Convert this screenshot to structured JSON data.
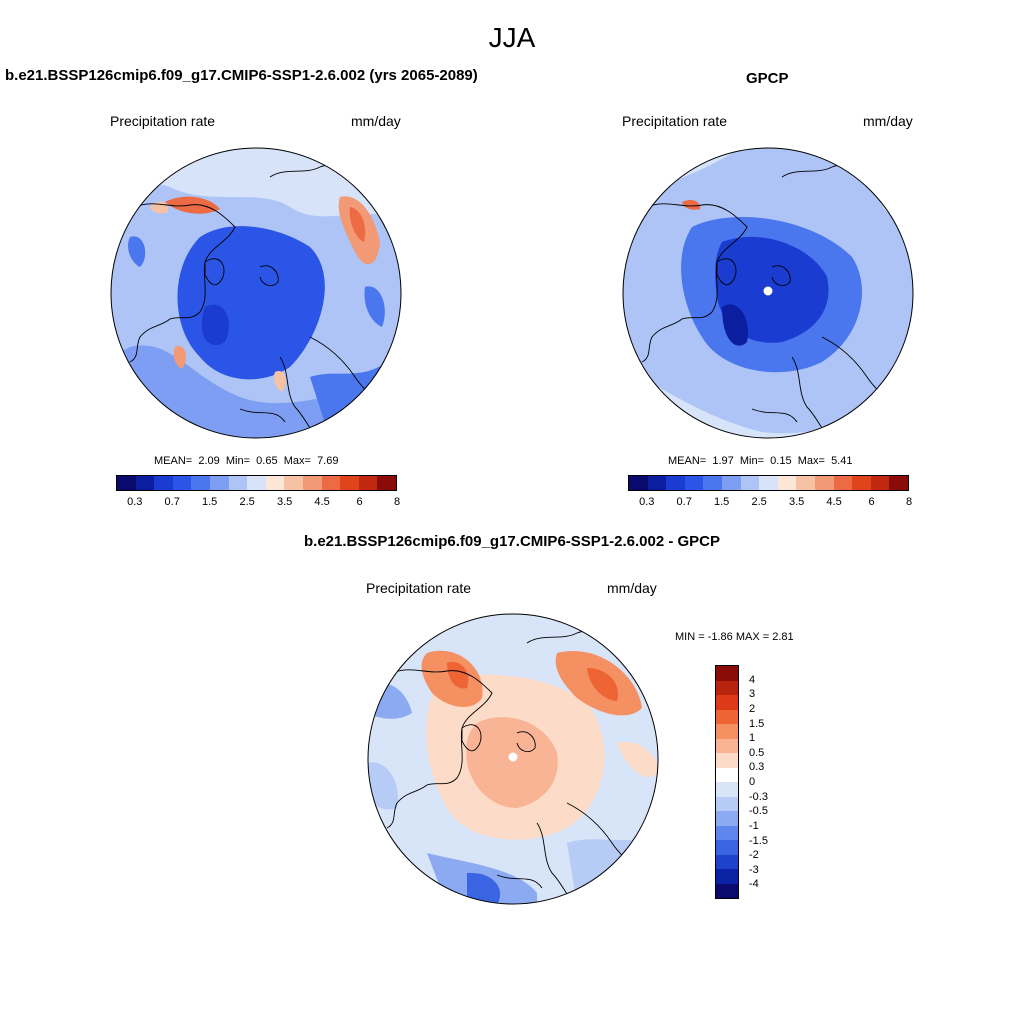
{
  "season": "JJA",
  "panels": [
    {
      "id": "model",
      "title": "b.e21.BSSP126cmip6.f09_g17.CMIP6-SSP1-2.6.002 (yrs 2065-2089)",
      "var_label": "Precipitation rate",
      "units": "mm/day",
      "stats": {
        "mean_label": "MEAN=",
        "mean": "2.09",
        "min_label": "Min=",
        "min": "0.65",
        "max_label": "Max=",
        "max": "7.69"
      }
    },
    {
      "id": "obs",
      "title": "GPCP",
      "var_label": "Precipitation rate",
      "units": "mm/day",
      "stats": {
        "mean_label": "MEAN=",
        "mean": "1.97",
        "min_label": "Min=",
        "min": "0.15",
        "max_label": "Max=",
        "max": "5.41"
      }
    },
    {
      "id": "diff",
      "title": "b.e21.BSSP126cmip6.f09_g17.CMIP6-SSP1-2.6.002 - GPCP",
      "var_label": "Precipitation rate",
      "units": "mm/day",
      "stats_text": "MIN =  -1.86 MAX =   2.81"
    }
  ],
  "colorbar_abs": {
    "colors": [
      "#0a0a6e",
      "#0c1ea0",
      "#1a3cd0",
      "#2a55e6",
      "#4a76ee",
      "#7d9ef2",
      "#aec4f6",
      "#d6e3f8",
      "#fbe6d8",
      "#f6c2a6",
      "#f29a76",
      "#ec6a44",
      "#e0441c",
      "#c02810",
      "#8a0c08"
    ],
    "labels": [
      "0.3",
      "0.7",
      "1.5",
      "2.5",
      "3.5",
      "4.5",
      "6",
      "8"
    ]
  },
  "colorbar_diff": {
    "colors": [
      "#8a0c08",
      "#b8240e",
      "#dc3a18",
      "#ee6434",
      "#f49062",
      "#f8b494",
      "#fcdcc8",
      "#ffffff",
      "#d8e4f8",
      "#b6cbf6",
      "#8caaf2",
      "#5f86ec",
      "#3a64e2",
      "#1e42cc",
      "#0c22a4",
      "#0a0a6e"
    ],
    "labels": [
      "4",
      "3",
      "2",
      "1.5",
      "1",
      "0.5",
      "0.3",
      "0",
      "-0.3",
      "-0.5",
      "-1",
      "-1.5",
      "-2",
      "-3",
      "-4"
    ]
  }
}
